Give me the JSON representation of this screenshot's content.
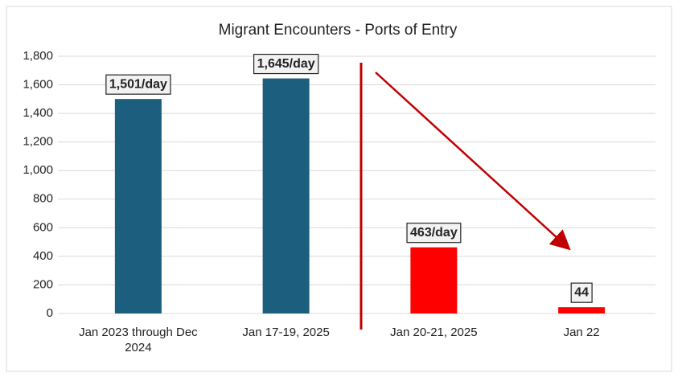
{
  "chart_data": {
    "type": "bar",
    "title": "Migrant Encounters - Ports of Entry",
    "categories": [
      "Jan 2023 through Dec 2024",
      "Jan 17-19, 2025",
      "Jan 20-21, 2025",
      "Jan 22"
    ],
    "values": [
      1501,
      1645,
      463,
      44
    ],
    "value_labels": [
      "1,501/day",
      "1,645/day",
      "463/day",
      "44"
    ],
    "colors": [
      "#1b5e7d",
      "#1b5e7d",
      "#ff0000",
      "#ff0000"
    ],
    "ylim": [
      0,
      1800
    ],
    "yticks": [
      0,
      200,
      400,
      600,
      800,
      {
        "value": 1000,
        "label": "1,000"
      },
      {
        "value": 1200,
        "label": "1,200"
      },
      {
        "value": 1400,
        "label": "1,400"
      },
      {
        "value": 1600,
        "label": "1,600"
      },
      {
        "value": 1800,
        "label": "1,800"
      }
    ],
    "grid": true
  }
}
